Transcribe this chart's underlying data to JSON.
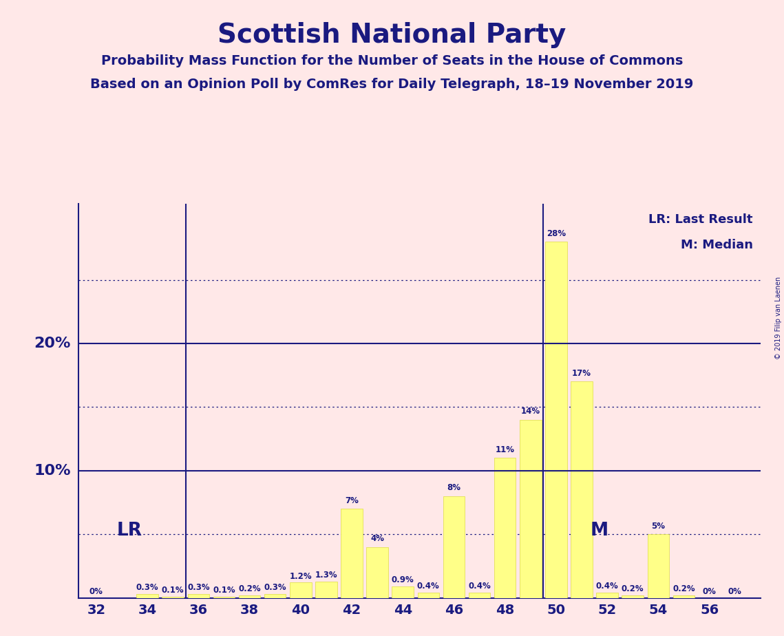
{
  "title": "Scottish National Party",
  "subtitle1": "Probability Mass Function for the Number of Seats in the House of Commons",
  "subtitle2": "Based on an Opinion Poll by ComRes for Daily Telegraph, 18–19 November 2019",
  "copyright": "© 2019 Filip van Laenen",
  "bar_data": [
    [
      32,
      0.0
    ],
    [
      33,
      0.0
    ],
    [
      34,
      0.3
    ],
    [
      35,
      0.1
    ],
    [
      36,
      0.3
    ],
    [
      37,
      0.1
    ],
    [
      38,
      0.2
    ],
    [
      39,
      0.3
    ],
    [
      40,
      1.2
    ],
    [
      41,
      1.3
    ],
    [
      42,
      7.0
    ],
    [
      43,
      4.0
    ],
    [
      44,
      0.9
    ],
    [
      45,
      0.4
    ],
    [
      46,
      8.0
    ],
    [
      47,
      0.4
    ],
    [
      48,
      11.0
    ],
    [
      49,
      14.0
    ],
    [
      50,
      28.0
    ],
    [
      51,
      17.0
    ],
    [
      52,
      0.4
    ],
    [
      53,
      0.2
    ],
    [
      54,
      5.0
    ],
    [
      55,
      0.2
    ],
    [
      56,
      0.0
    ],
    [
      57,
      0.0
    ]
  ],
  "bar_color": "#FFFF88",
  "bar_edgecolor": "#DDDD44",
  "background_color": "#FFE8E8",
  "text_color": "#1a1a80",
  "LR_x": 35.5,
  "M_x": 49.5,
  "hlines_dotted": [
    5.0,
    15.0,
    25.0
  ],
  "hlines_solid": [
    10.0,
    20.0
  ],
  "xlim": [
    31.3,
    58.0
  ],
  "ylim": [
    0,
    31
  ],
  "legend_lr": "LR: Last Result",
  "legend_m": "M: Median",
  "bar_labels": {
    "32": "0%",
    "34": "0.3%",
    "35": "0.1%",
    "36": "0.3%",
    "37": "0.1%",
    "38": "0.2%",
    "39": "0.3%",
    "40": "1.2%",
    "41": "1.3%",
    "42": "7%",
    "43": "4%",
    "44": "0.9%",
    "45": "0.4%",
    "46": "8%",
    "47": "0.4%",
    "48": "11%",
    "49": "14%",
    "50": "28%",
    "51": "17%",
    "52": "0.4%",
    "53": "0.2%",
    "54": "5%",
    "55": "0.2%",
    "56": "0%",
    "57": "0%"
  }
}
